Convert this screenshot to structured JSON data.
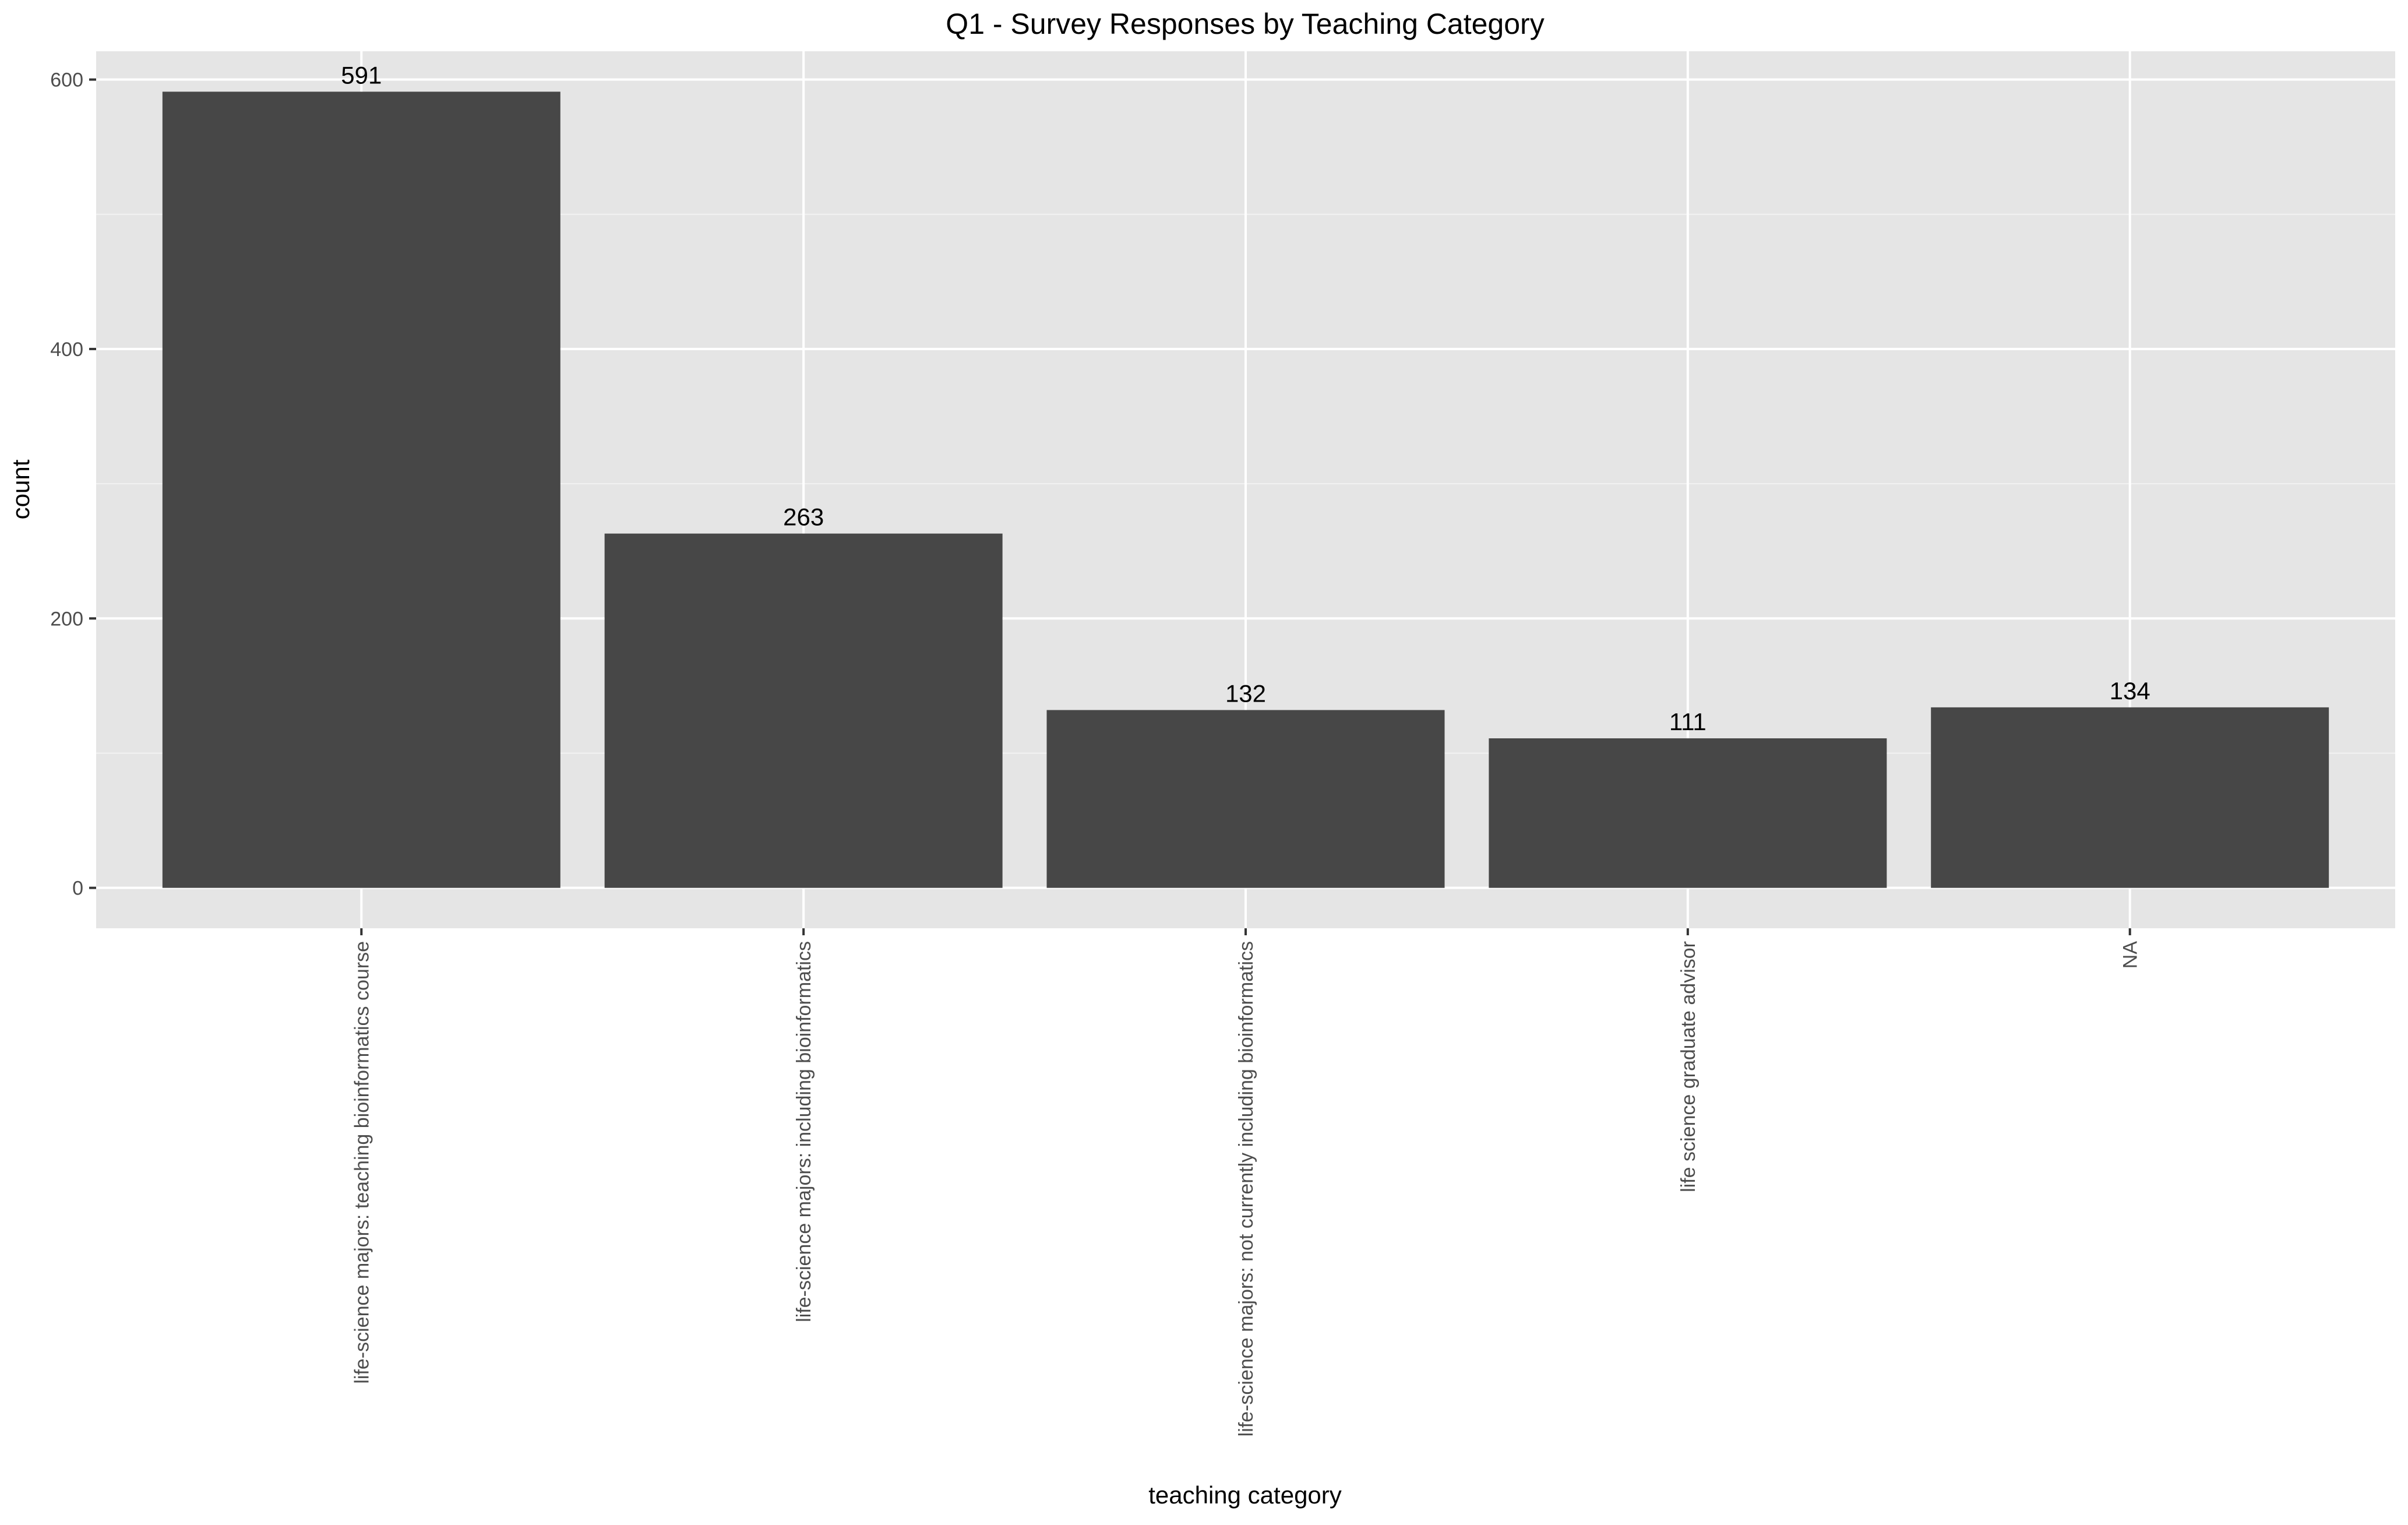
{
  "chart_data": {
    "type": "bar",
    "title": "Q1 - Survey Responses by Teaching Category",
    "xlabel": "teaching category",
    "ylabel": "count",
    "categories": [
      "life-science majors: teaching bioinformatics course",
      "life-science majors: including bioinformatics",
      "life-science majors: not currently including bioinformatics",
      "life science graduate advisor",
      "NA"
    ],
    "values": [
      591,
      263,
      132,
      111,
      134
    ],
    "data_labels": [
      "591",
      "263",
      "132",
      "111",
      "134"
    ],
    "y_ticks": [
      0,
      200,
      400,
      600
    ],
    "y_tick_labels": [
      "0",
      "200",
      "400",
      "600"
    ],
    "ylim": [
      -30,
      621
    ],
    "grid": true,
    "x_label_rotation": "vertical",
    "colors": {
      "panel_background": "#e5e5e5",
      "grid_major": "#ffffff",
      "grid_minor": "#f2f2f2",
      "bar_fill": "#474747",
      "tick_label": "#4d4d4d",
      "axis_tick": "#333333",
      "text": "#000000"
    }
  }
}
